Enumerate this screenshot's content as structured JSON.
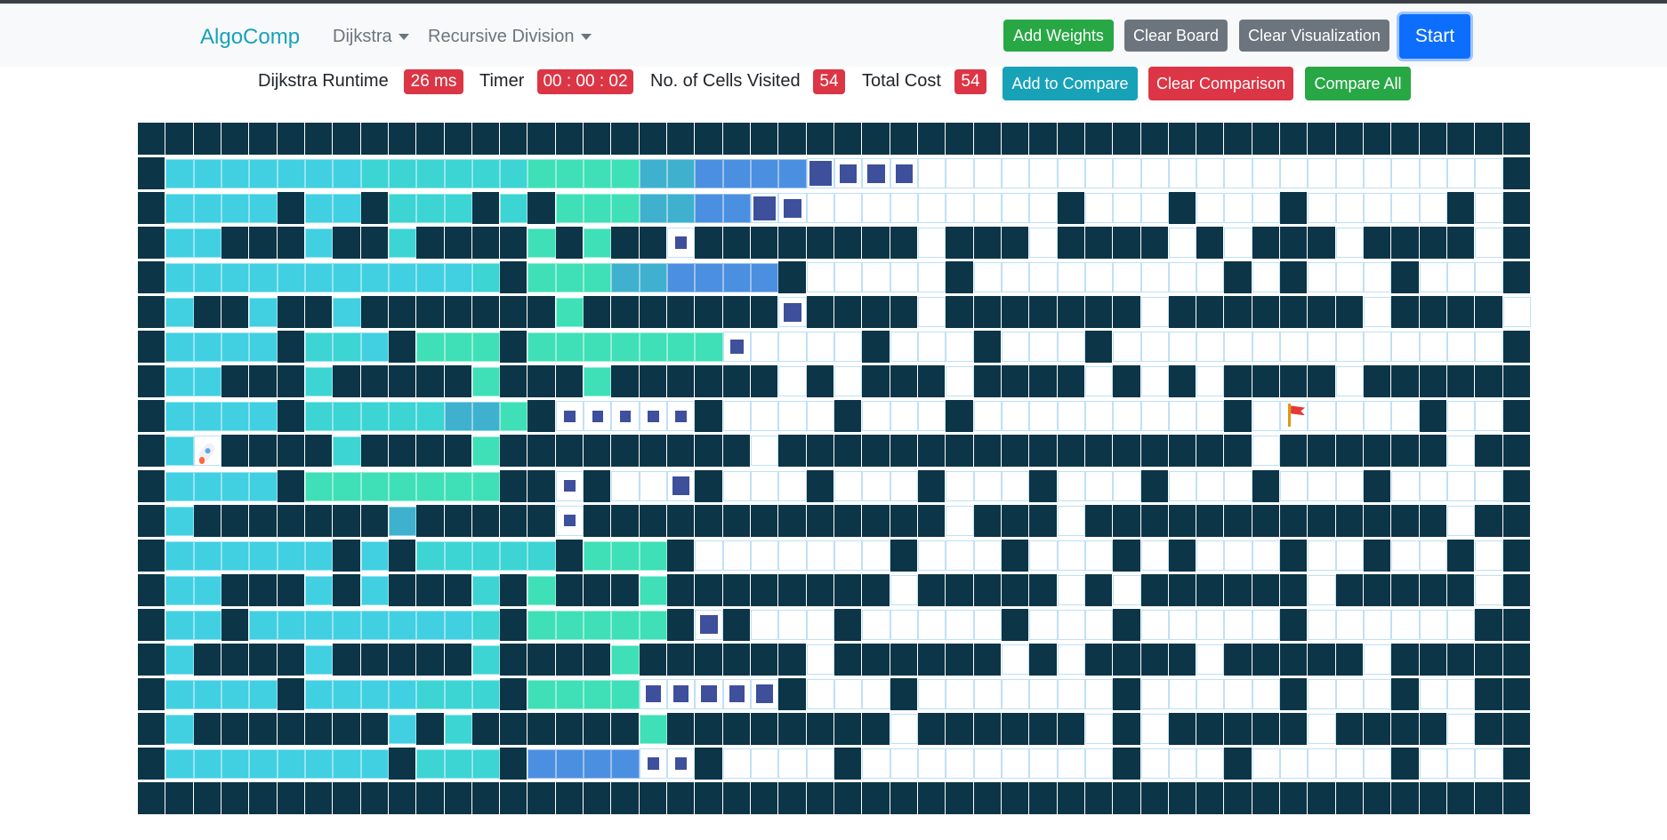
{
  "navbar": {
    "brand": "AlgoComp",
    "algorithm_dropdown": "Dijkstra",
    "maze_dropdown": "Recursive Division",
    "buttons": {
      "add_weights": "Add Weights",
      "clear_board": "Clear Board",
      "clear_visualization": "Clear Visualization",
      "start": "Start"
    }
  },
  "stats": {
    "runtime_label": "Dijkstra Runtime",
    "runtime_value": "26 ms",
    "timer_label": "Timer",
    "timer_value": "00 : 00 : 02",
    "visited_label": "No. of Cells Visited",
    "visited_value": "54",
    "cost_label": "Total Cost",
    "cost_value": "54"
  },
  "compare": {
    "add_to_compare": "Add to Compare",
    "clear_comparison": "Clear Comparison",
    "compare_all": "Compare All"
  },
  "colors": {
    "brand": "#17a2b8",
    "wall": "#0c3547",
    "empty_border": "#bfe0f7",
    "visited_start": "#41cfe2",
    "visited_mid": "#3fe0b7",
    "visited_end": "#4b8fe0",
    "frontier": "#3e4f9b",
    "badge": "#dc3545",
    "success": "#28a745",
    "secondary": "#6c757d",
    "info": "#17a2b8",
    "primary": "#0d6efd"
  },
  "grid": {
    "rows": [
      "WWWWWWWWWWWWWWWWWWWWWWWWWWWWWWWWWWWWWWWWWWWWWWWWWW",
      "WAAAAAAAMMMMMMGGGGHHbbbbcddd.....................W",
      "WAAAAWAAWMMMWMWGGGHHbbcd.........W...W...W.....W.W",
      "WAAWWWAWWMWWWWGWGWWfWWWWWWWW.WWW.WWWW.W.WWW.WWWW.W",
      "WAAAAAAAAAAAMWGGGHHbbbbW.....W.........W.W...W...W",
      "WAWWAWWAWWWWWWWGWWWWWWWdWWWW.WWWWWWW.WWWWWWW.WWWW.W",
      "WAAAAWMMAWGGGWGGGGGGGe....W...W...W..............W",
      "WAAWWWMWWWWWGWWWGWWWWWW.W.WWW.WWWW.W.W.WWWW.WWWWWW",
      "WAAAAWMMMMMHHGWfffffW....W...W.........W.F....W..W",
      "WAoWWWWMWWWWGWWWWWWWWW.WWWWWWWWWWWWWWWWW.WWWWWW.WW",
      "WAAAAWGGGGGGGWWfW..dW...W...W...W...W...W...W....W",
      "WAWWWWWWWHWWWWWfWWWWWWWWWWWWW.WWW.WWWWWWWWWWWWW.W",
      "WAAAAAAWAWMMMMMWGGGW.......W...W...W.W...W..W..W.W",
      "WAAWWWAWAWWWMWGWWWGWWWWWWWW.WWWWW.W.WWWWWW.WWWWW.W",
      "WAAWAAAAAAAAMWGGGGGWdW...W.....W...W.....W......W",
      "WAWWWWAWWWWWMWWWWGWWWWWW.WWWWWW.W.WWWW.WWWWW.WWWWW",
      "WAAAAWAAAAMMMWGGGGggggdW...W.......W.....W...W..W",
      "WAWWWWWWWAWMWWWWWWGWWWWWWWW.WWWWWW.W.WWWWW.WWWW.W",
      "WAAAAAAAAWMMMWbbbbffW....W.........W...W.....W...W",
      "WWWWWWWWWWWWWWWWWWWWWWWWWWWWWWWWWWWWWWWWWWWWWWWWWW"
    ],
    "legend": {
      "W": "wall",
      ".": "unvisited",
      "A": "visited-early",
      "M": "visited-mid",
      "G": "visited-teal",
      "H": "visited-steel",
      "b": "visited-blue",
      "c": "frontier-large",
      "d": "frontier-medium",
      "e": "frontier-small",
      "f": "frontier-dot",
      "g": "frontier-fading",
      "o": "start-node",
      "F": "target-node"
    },
    "start_icon": "rocket-icon",
    "target_icon": "flag-icon"
  }
}
